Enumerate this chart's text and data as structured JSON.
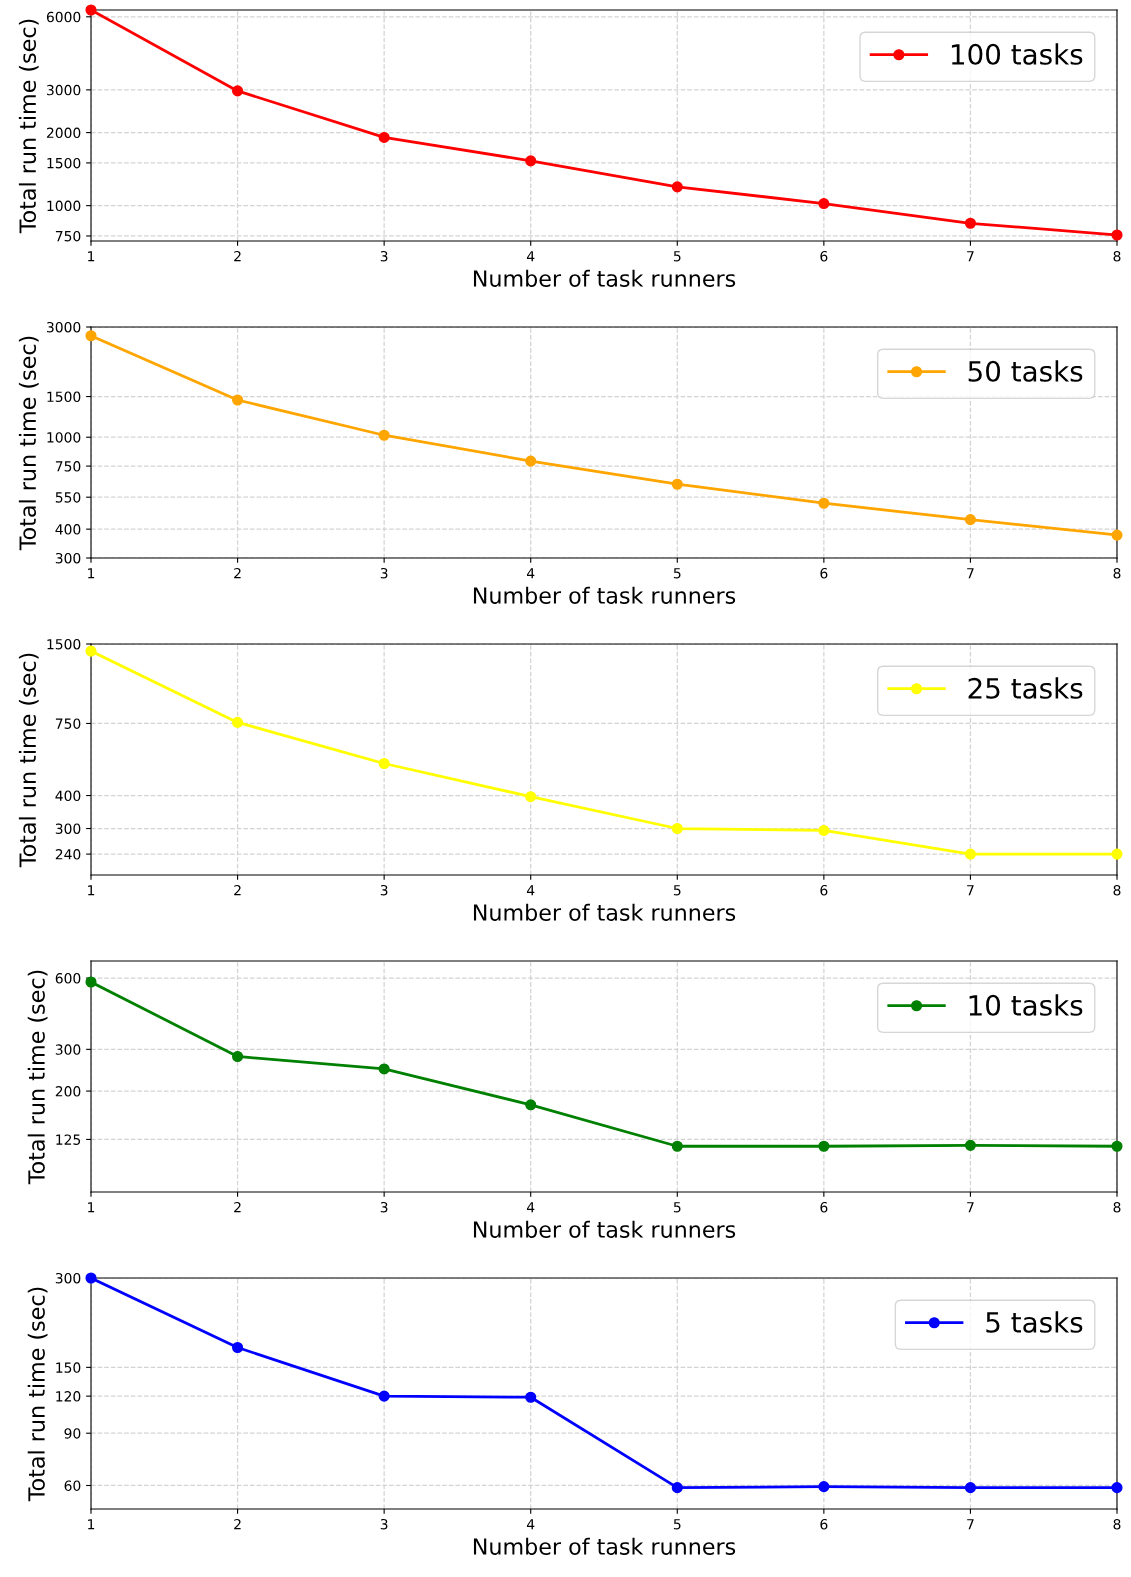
{
  "chart_data": [
    {
      "type": "line",
      "xlabel": "Number of task runners",
      "ylabel": "Total run time (sec)",
      "x": [
        1,
        2,
        3,
        4,
        5,
        6,
        7,
        8
      ],
      "xlim": [
        1,
        8
      ],
      "xticks": [
        1,
        2,
        3,
        4,
        5,
        6,
        7,
        8
      ],
      "ylim": [
        715,
        6400
      ],
      "yticks": [
        750,
        1000,
        1500,
        2000,
        3000,
        6000
      ],
      "log": true,
      "grid": true,
      "legend": "top right",
      "marker": "circle",
      "line_style": "solid",
      "series": [
        {
          "name": "100 tasks",
          "color": "#ff0000",
          "values": [
            6400,
            2970,
            1910,
            1530,
            1195,
            1020,
            846,
            757
          ]
        }
      ]
    },
    {
      "type": "line",
      "xlabel": "Number of task runners",
      "ylabel": "Total run time (sec)",
      "x": [
        1,
        2,
        3,
        4,
        5,
        6,
        7,
        8
      ],
      "xlim": [
        1,
        8
      ],
      "xticks": [
        1,
        2,
        3,
        4,
        5,
        6,
        7,
        8
      ],
      "ylim": [
        300,
        3000
      ],
      "yticks": [
        300,
        400,
        550,
        750,
        1000,
        1500,
        3000
      ],
      "log": true,
      "grid": true,
      "legend": "top right",
      "marker": "circle",
      "line_style": "solid",
      "series": [
        {
          "name": "50 tasks",
          "color": "#ffa500",
          "values": [
            2750,
            1449,
            1020,
            788,
            626,
            518,
            440,
            377
          ]
        }
      ]
    },
    {
      "type": "line",
      "xlabel": "Number of task runners",
      "ylabel": "Total run time (sec)",
      "x": [
        1,
        2,
        3,
        4,
        5,
        6,
        7,
        8
      ],
      "xlim": [
        1,
        8
      ],
      "xticks": [
        1,
        2,
        3,
        4,
        5,
        6,
        7,
        8
      ],
      "ylim": [
        200,
        1500
      ],
      "yticks": [
        240,
        300,
        400,
        750,
        1500
      ],
      "log": true,
      "grid": true,
      "legend": "top right",
      "marker": "circle",
      "line_style": "solid",
      "series": [
        {
          "name": "25 tasks",
          "color": "#ffff00",
          "values": [
            1410,
            757,
            529,
            396,
            300,
            295,
            240,
            240
          ]
        }
      ]
    },
    {
      "type": "line",
      "xlabel": "Number of task runners",
      "ylabel": "Total run time (sec)",
      "x": [
        1,
        2,
        3,
        4,
        5,
        6,
        7,
        8
      ],
      "xlim": [
        1,
        8
      ],
      "xticks": [
        1,
        2,
        3,
        4,
        5,
        6,
        7,
        8
      ],
      "ylim": [
        75,
        708
      ],
      "yticks": [
        125,
        200,
        300,
        600
      ],
      "log": true,
      "grid": true,
      "legend": "top right",
      "marker": "circle",
      "line_style": "solid",
      "series": [
        {
          "name": "10 tasks",
          "color": "#008000",
          "values": [
            577,
            280,
            248,
            175,
            117,
            117,
            118,
            117
          ]
        }
      ]
    },
    {
      "type": "line",
      "xlabel": "Number of task runners",
      "ylabel": "Total run time (sec)",
      "x": [
        1,
        2,
        3,
        4,
        5,
        6,
        7,
        8
      ],
      "xlim": [
        1,
        8
      ],
      "xticks": [
        1,
        2,
        3,
        4,
        5,
        6,
        7,
        8
      ],
      "ylim": [
        50,
        300
      ],
      "yticks": [
        60,
        90,
        120,
        150,
        300
      ],
      "log": true,
      "grid": true,
      "legend": "top right",
      "marker": "circle",
      "line_style": "solid",
      "series": [
        {
          "name": "5 tasks",
          "color": "#0000ff",
          "values": [
            300,
            175,
            120,
            119,
            59,
            59.5,
            59,
            59
          ]
        }
      ]
    }
  ]
}
